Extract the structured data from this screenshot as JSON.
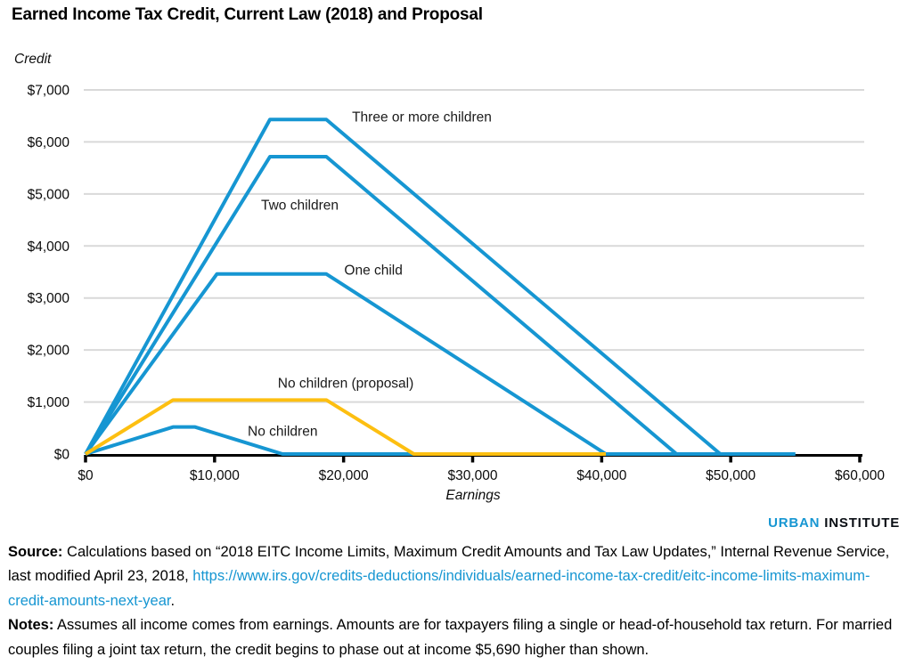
{
  "chart_data": {
    "type": "line",
    "title": "Earned Income Tax Credit, Current Law (2018) and Proposal",
    "xlabel": "Earnings",
    "ylabel": "Credit",
    "xlim": [
      0,
      60000
    ],
    "ylim": [
      0,
      7000
    ],
    "grid": "horizontal",
    "legend_position": "inline-labels",
    "x_ticks": [
      {
        "value": 0,
        "label": "$0"
      },
      {
        "value": 10000,
        "label": "$10,000"
      },
      {
        "value": 20000,
        "label": "$20,000"
      },
      {
        "value": 30000,
        "label": "$30,000"
      },
      {
        "value": 40000,
        "label": "$40,000"
      },
      {
        "value": 50000,
        "label": "$50,000"
      },
      {
        "value": 60000,
        "label": "$60,000"
      }
    ],
    "y_ticks": [
      {
        "value": 0,
        "label": "$0"
      },
      {
        "value": 1000,
        "label": "$1,000"
      },
      {
        "value": 2000,
        "label": "$2,000"
      },
      {
        "value": 3000,
        "label": "$3,000"
      },
      {
        "value": 4000,
        "label": "$4,000"
      },
      {
        "value": 5000,
        "label": "$5,000"
      },
      {
        "value": 6000,
        "label": "$6,000"
      },
      {
        "value": 7000,
        "label": "$7,000"
      }
    ],
    "series": [
      {
        "key": "no-children",
        "name": "No children",
        "color": "#1696d2",
        "points": [
          [
            0,
            0
          ],
          [
            6780,
            519
          ],
          [
            8490,
            519
          ],
          [
            15270,
            0
          ],
          [
            55000,
            0
          ]
        ],
        "label": {
          "text": "No children",
          "x": 12570,
          "y": 445
        }
      },
      {
        "key": "one-child",
        "name": "One child",
        "color": "#1696d2",
        "points": [
          [
            0,
            0
          ],
          [
            10180,
            3461
          ],
          [
            18660,
            3461
          ],
          [
            40320,
            0
          ],
          [
            55000,
            0
          ]
        ],
        "label": {
          "text": "One child",
          "x": 20050,
          "y": 3545
        }
      },
      {
        "key": "two-children",
        "name": "Two children",
        "color": "#1696d2",
        "points": [
          [
            0,
            0
          ],
          [
            14290,
            5716
          ],
          [
            18660,
            5716
          ],
          [
            45802,
            0
          ],
          [
            55000,
            0
          ]
        ],
        "label": {
          "text": "Two children",
          "x": 13600,
          "y": 4790
        }
      },
      {
        "key": "three-or-more-children",
        "name": "Three or more children",
        "color": "#1696d2",
        "points": [
          [
            0,
            0
          ],
          [
            14290,
            6431
          ],
          [
            18660,
            6431
          ],
          [
            49194,
            0
          ],
          [
            55000,
            0
          ]
        ],
        "label": {
          "text": "Three or more children",
          "x": 20650,
          "y": 6485
        }
      },
      {
        "key": "no-children-proposal",
        "name": "No children (proposal)",
        "color": "#fdbf11",
        "points": [
          [
            0,
            0
          ],
          [
            6784,
            1038
          ],
          [
            18660,
            1038
          ],
          [
            25444,
            0
          ],
          [
            40320,
            0
          ]
        ],
        "label": {
          "text": "No children (proposal)",
          "x": 14900,
          "y": 1370
        }
      }
    ]
  },
  "colors": {
    "accent_blue": "#1696d2",
    "accent_yellow": "#fdbf11",
    "gridline": "#d9d9d9",
    "axis": "#000000"
  },
  "footer": {
    "logo": {
      "part1": "URBAN",
      "part2": "INSTITUTE"
    },
    "source_label": "Source:",
    "source_text": " Calculations based on “2018 EITC Income Limits, Maximum Credit Amounts and Tax Law Updates,” Internal Revenue Service, last modified April 23, 2018, ",
    "source_link": "https://www.irs.gov/credits-deductions/individuals/earned-income-tax-credit/eitc-income-limits-maximum-credit-amounts-next-year",
    "source_suffix": ".",
    "notes_label": "Notes:",
    "notes_text": " Assumes all income comes from earnings. Amounts are for taxpayers filing a single or head-of-household tax return. For married couples filing a joint tax return, the credit begins to phase out at income $5,690 higher than shown."
  }
}
